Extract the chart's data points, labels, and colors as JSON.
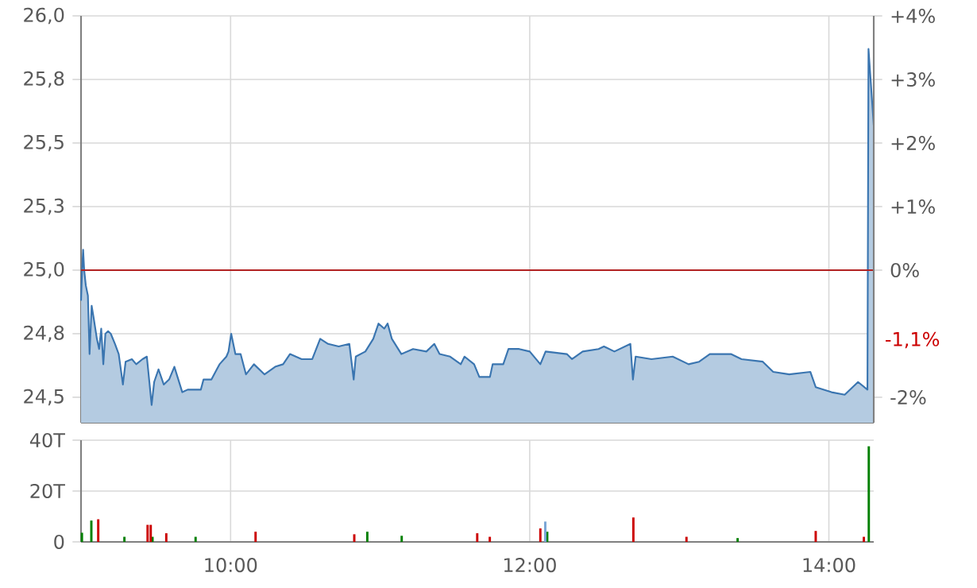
{
  "chart_data": [
    {
      "type": "area",
      "color": "#3a75b0",
      "tick_labels": "y",
      "grid": true,
      "x": [
        9.0,
        9.007,
        9.014,
        9.021,
        9.032,
        9.046,
        9.057,
        9.071,
        9.085,
        9.106,
        9.121,
        9.135,
        9.149,
        9.163,
        9.181,
        9.199,
        9.227,
        9.252,
        9.28,
        9.298,
        9.34,
        9.369,
        9.411,
        9.44,
        9.457,
        9.472,
        9.489,
        9.518,
        9.553,
        9.589,
        9.624,
        9.677,
        9.713,
        9.801,
        9.819,
        9.872,
        9.908,
        9.926,
        9.972,
        9.986,
        10.004,
        10.032,
        10.067,
        10.103,
        10.156,
        10.227,
        10.298,
        10.351,
        10.397,
        10.475,
        10.546,
        10.599,
        10.652,
        10.723,
        10.794,
        10.823,
        10.837,
        10.901,
        10.954,
        10.989,
        11.027,
        11.05,
        11.078,
        11.142,
        11.22,
        11.309,
        11.362,
        11.397,
        11.468,
        11.539,
        11.564,
        11.628,
        11.663,
        11.734,
        11.752,
        11.823,
        11.858,
        11.929,
        12.0,
        12.071,
        12.106,
        12.248,
        12.283,
        12.354,
        12.46,
        12.496,
        12.566,
        12.673,
        12.69,
        12.708,
        12.814,
        12.956,
        13.062,
        13.133,
        13.204,
        13.345,
        13.416,
        13.558,
        13.628,
        13.735,
        13.876,
        13.912,
        14.018,
        14.106,
        14.195,
        14.258,
        14.265,
        14.3
      ],
      "values": [
        24.88,
        25.0,
        25.08,
        25.0,
        24.94,
        24.9,
        24.67,
        24.86,
        24.81,
        24.73,
        24.69,
        24.77,
        24.63,
        24.75,
        24.76,
        24.75,
        24.71,
        24.67,
        24.55,
        24.64,
        24.65,
        24.63,
        24.65,
        24.66,
        24.56,
        24.47,
        24.56,
        24.61,
        24.55,
        24.57,
        24.62,
        24.52,
        24.53,
        24.53,
        24.57,
        24.57,
        24.61,
        24.63,
        24.66,
        24.68,
        24.75,
        24.67,
        24.67,
        24.59,
        24.63,
        24.59,
        24.62,
        24.63,
        24.67,
        24.65,
        24.65,
        24.73,
        24.71,
        24.7,
        24.71,
        24.57,
        24.66,
        24.68,
        24.73,
        24.79,
        24.77,
        24.79,
        24.73,
        24.67,
        24.69,
        24.68,
        24.71,
        24.67,
        24.66,
        24.63,
        24.66,
        24.63,
        24.58,
        24.58,
        24.63,
        24.63,
        24.69,
        24.69,
        24.68,
        24.63,
        24.68,
        24.67,
        24.65,
        24.68,
        24.69,
        24.7,
        24.68,
        24.71,
        24.57,
        24.66,
        24.65,
        24.66,
        24.63,
        24.64,
        24.67,
        24.67,
        24.65,
        24.64,
        24.6,
        24.59,
        24.6,
        24.54,
        24.52,
        24.51,
        24.56,
        24.53,
        25.87,
        25.57
      ],
      "xlim": [
        9.0,
        14.3
      ],
      "xticks": [
        {
          "value": 10,
          "label": null
        },
        {
          "value": 12,
          "label": null
        },
        {
          "value": 14,
          "label": null
        }
      ],
      "ylim": [
        24.4,
        26.0
      ],
      "yticks": [
        {
          "value": 24.5,
          "label": "24,5"
        },
        {
          "value": 24.75,
          "label": "24,8"
        },
        {
          "value": 25.0,
          "label": "25,0"
        },
        {
          "value": 25.25,
          "label": "25,3"
        },
        {
          "value": 25.5,
          "label": "25,5"
        },
        {
          "value": 25.75,
          "label": "25,8"
        },
        {
          "value": 26.0,
          "label": "26,0"
        }
      ],
      "y2lim": [
        -2.4,
        4.0
      ],
      "y2ticks": [
        {
          "value": -2,
          "label": "-2%"
        },
        {
          "value": 0,
          "label": "0%"
        },
        {
          "value": 1,
          "label": "+1%"
        },
        {
          "value": 2,
          "label": "+2%"
        },
        {
          "value": 3,
          "label": "+3%"
        },
        {
          "value": 4,
          "label": "+4%"
        }
      ],
      "ref_lines": [
        {
          "axis": "y",
          "value": 25.0,
          "color": "#b22222"
        }
      ],
      "annotations": [
        {
          "text": "-1,1%",
          "x": 14.3,
          "y": 24.725
        }
      ]
    },
    {
      "type": "bar",
      "grid": true,
      "series": [
        {
          "color": "#008000",
          "x": [
            9.006,
            9.069,
            9.29,
            9.478,
            9.766,
            10.914,
            11.144,
            12.117,
            13.39,
            14.267
          ],
          "values": [
            3.6,
            8.4,
            2,
            2,
            2,
            4,
            2.4,
            4,
            1.5,
            37.6
          ]
        },
        {
          "color": "#cc0000",
          "x": [
            9.115,
            9.445,
            9.466,
            9.57,
            10.167,
            10.827,
            11.649,
            11.733,
            12.071,
            12.693,
            13.048,
            13.912,
            14.234
          ],
          "values": [
            8.9,
            6.7,
            6.7,
            3.4,
            4,
            3,
            3.4,
            2,
            5.3,
            9.6,
            2,
            4.3,
            2
          ]
        },
        {
          "color": "#7aa6d6",
          "x": [
            12.104
          ],
          "values": [
            8
          ]
        }
      ],
      "xlim": [
        9.0,
        14.3
      ],
      "xticks": [
        {
          "value": 10,
          "label": "10:00"
        },
        {
          "value": 12,
          "label": "12:00"
        },
        {
          "value": 14,
          "label": "14:00"
        }
      ],
      "ylim": [
        0,
        40
      ],
      "yticks": [
        0,
        {
          "value": 20,
          "label": "20T"
        },
        {
          "value": 40,
          "label": "40T"
        }
      ]
    }
  ]
}
